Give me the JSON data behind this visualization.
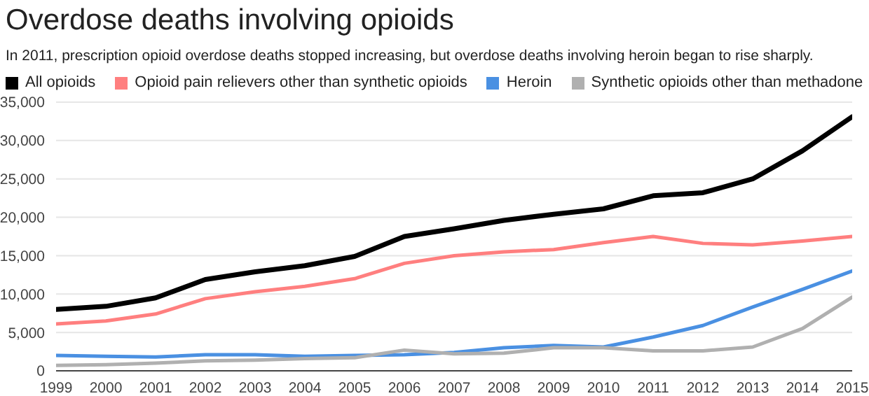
{
  "chart_data": {
    "type": "line",
    "title": "Overdose deaths involving opioids",
    "subtitle": "In 2011, prescription opioid overdose deaths stopped increasing, but overdose deaths involving heroin began to rise sharply.",
    "x": [
      1999,
      2000,
      2001,
      2002,
      2003,
      2004,
      2005,
      2006,
      2007,
      2008,
      2009,
      2010,
      2011,
      2012,
      2013,
      2014,
      2015
    ],
    "xlim": [
      1999,
      2015
    ],
    "xticks": [
      1999,
      2000,
      2001,
      2002,
      2003,
      2004,
      2005,
      2006,
      2007,
      2008,
      2009,
      2010,
      2011,
      2012,
      2013,
      2014,
      2015
    ],
    "ylim": [
      0,
      35000
    ],
    "yticks": [
      {
        "value": 0,
        "label": "0"
      },
      {
        "value": 5000,
        "label": "5,000"
      },
      {
        "value": 10000,
        "label": "10,000"
      },
      {
        "value": 15000,
        "label": "15,000"
      },
      {
        "value": 20000,
        "label": "20,000"
      },
      {
        "value": 25000,
        "label": "25,000"
      },
      {
        "value": 30000,
        "label": "30,000"
      },
      {
        "value": 35000,
        "label": "35,000"
      }
    ],
    "grid": "y",
    "legend": "top left",
    "marker": "none",
    "line_style": "solid",
    "series": [
      {
        "name": "All opioids",
        "color": "#000000",
        "values": [
          8000,
          8400,
          9500,
          11900,
          12900,
          13700,
          14900,
          17500,
          18500,
          19600,
          20400,
          21100,
          22800,
          23200,
          25000,
          28650,
          33100
        ]
      },
      {
        "name": "Opioid pain relievers other than synthetic opioids",
        "color": "#ff7f7f",
        "values": [
          6100,
          6500,
          7400,
          9400,
          10300,
          11000,
          12000,
          14000,
          15000,
          15500,
          15800,
          16700,
          17500,
          16600,
          16400,
          16900,
          17500
        ]
      },
      {
        "name": "Heroin",
        "color": "#4a90e2",
        "values": [
          2000,
          1900,
          1800,
          2100,
          2100,
          1900,
          2000,
          2100,
          2400,
          3000,
          3300,
          3100,
          4400,
          5900,
          8300,
          10600,
          13000
        ]
      },
      {
        "name": "Synthetic opioids other than methadone",
        "color": "#b0b0b0",
        "values": [
          700,
          800,
          1000,
          1300,
          1400,
          1600,
          1700,
          2700,
          2200,
          2300,
          3000,
          3000,
          2600,
          2600,
          3100,
          5500,
          9600
        ]
      }
    ]
  }
}
